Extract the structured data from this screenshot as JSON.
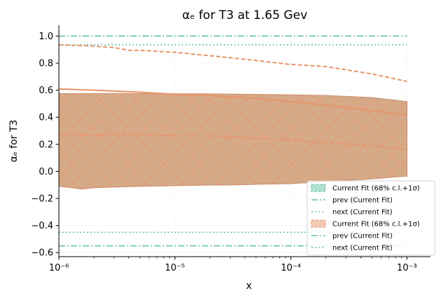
{
  "chart_data": {
    "type": "line",
    "title": "αₑ for T3 at 1.65 Gev",
    "xlabel": "x",
    "ylabel": "αₑ for T3",
    "xscale": "log",
    "xlim": [
      1e-06,
      0.0016
    ],
    "ylim": [
      -0.63,
      1.08
    ],
    "x_ticks": [
      {
        "value": 1e-06,
        "label": "10⁻⁶"
      },
      {
        "value": 1e-05,
        "label": "10⁻⁵"
      },
      {
        "value": 0.0001,
        "label": "10⁻⁴"
      },
      {
        "value": 0.001,
        "label": "10⁻³"
      }
    ],
    "y_ticks": [
      {
        "value": 1.0,
        "label": "1.0"
      },
      {
        "value": 0.8,
        "label": "0.8"
      },
      {
        "value": 0.6,
        "label": "0.6"
      },
      {
        "value": 0.4,
        "label": "0.4"
      },
      {
        "value": 0.2,
        "label": "0.2"
      },
      {
        "value": 0.0,
        "label": "0.0"
      },
      {
        "value": -0.2,
        "label": "−0.2"
      },
      {
        "value": -0.4,
        "label": "−0.4"
      },
      {
        "value": -0.6,
        "label": "−0.6"
      }
    ],
    "grid": true,
    "legend_position": "lower-right",
    "colors": {
      "green": "#66c2a5",
      "orange": "#e8956b",
      "band_fill": "#cd9b73",
      "band_edge": "#d09a77"
    },
    "series": [
      {
        "kind": "band",
        "color": "#66c2a5",
        "x": [],
        "lower": [],
        "upper": []
      },
      {
        "kind": "hline",
        "color": "#66c2a5",
        "style": "dashdot",
        "y": 1.0
      },
      {
        "kind": "hline",
        "color": "#66c2a5",
        "style": "dotted",
        "y": 0.935
      },
      {
        "kind": "band",
        "color": "#e8956b",
        "hatch": true,
        "x": [
          1e-06,
          1.3e-06,
          1.6e-06,
          2e-06,
          3e-06,
          5e-06,
          1e-05,
          2e-05,
          3e-05,
          5e-05,
          0.0001,
          0.0002,
          0.0005,
          0.0008,
          0.001
        ],
        "lower": [
          -0.11,
          -0.12,
          -0.13,
          -0.12,
          -0.115,
          -0.11,
          -0.105,
          -0.1,
          -0.1,
          -0.095,
          -0.09,
          -0.075,
          -0.055,
          -0.04,
          -0.035
        ],
        "upper": [
          0.575,
          0.575,
          0.575,
          0.575,
          0.575,
          0.574,
          0.573,
          0.572,
          0.57,
          0.568,
          0.565,
          0.56,
          0.545,
          0.525,
          0.515
        ]
      },
      {
        "kind": "line",
        "color": "#e8956b",
        "style": "solid",
        "x": [
          1e-06,
          2e-06,
          5e-06,
          1e-05,
          2e-05,
          5e-05,
          0.0001,
          0.0002,
          0.0005,
          0.001
        ],
        "y": [
          0.61,
          0.6,
          0.585,
          0.57,
          0.56,
          0.54,
          0.515,
          0.49,
          0.45,
          0.415
        ]
      },
      {
        "kind": "line",
        "color": "#e8956b",
        "style": "dashed",
        "x": [
          1e-06,
          1.5e-06,
          2e-06,
          3e-06,
          5e-06,
          1e-05,
          2e-05,
          5e-05,
          0.0001,
          0.0002,
          0.0005,
          0.001
        ],
        "y": [
          0.28,
          0.27,
          0.265,
          0.275,
          0.27,
          0.265,
          0.26,
          0.245,
          0.235,
          0.21,
          0.19,
          0.16
        ]
      },
      {
        "kind": "line",
        "color": "#e8956b",
        "style": "dashed",
        "x": [
          1e-06,
          1.5e-06,
          2e-06,
          3e-06,
          4e-06,
          5e-06,
          1e-05,
          2e-05,
          5e-05,
          0.0001,
          0.0002,
          0.0005,
          0.001
        ],
        "y": [
          0.935,
          0.93,
          0.925,
          0.915,
          0.895,
          0.895,
          0.88,
          0.855,
          0.82,
          0.79,
          0.775,
          0.72,
          0.665
        ]
      },
      {
        "kind": "hline",
        "color": "#66c2a5",
        "style": "dashdot",
        "y": -0.55
      },
      {
        "kind": "hline",
        "color": "#66c2a5",
        "style": "dotted",
        "y": -0.45
      }
    ],
    "legend": [
      {
        "label": "Current Fit (68% c.l.+1σ)",
        "kind": "band",
        "color": "#66c2a5"
      },
      {
        "label": "prev (Current Fit)",
        "kind": "dashdot",
        "color": "#66c2a5"
      },
      {
        "label": "next (Current Fit)",
        "kind": "dotted",
        "color": "#66c2a5"
      },
      {
        "label": "Current Fit (68% c.l.+1σ)",
        "kind": "band",
        "color": "#e8956b"
      },
      {
        "label": "prev (Current Fit)",
        "kind": "dashdot",
        "color": "#66c2a5"
      },
      {
        "label": "next (Current Fit)",
        "kind": "dotted",
        "color": "#66c2a5"
      }
    ]
  }
}
